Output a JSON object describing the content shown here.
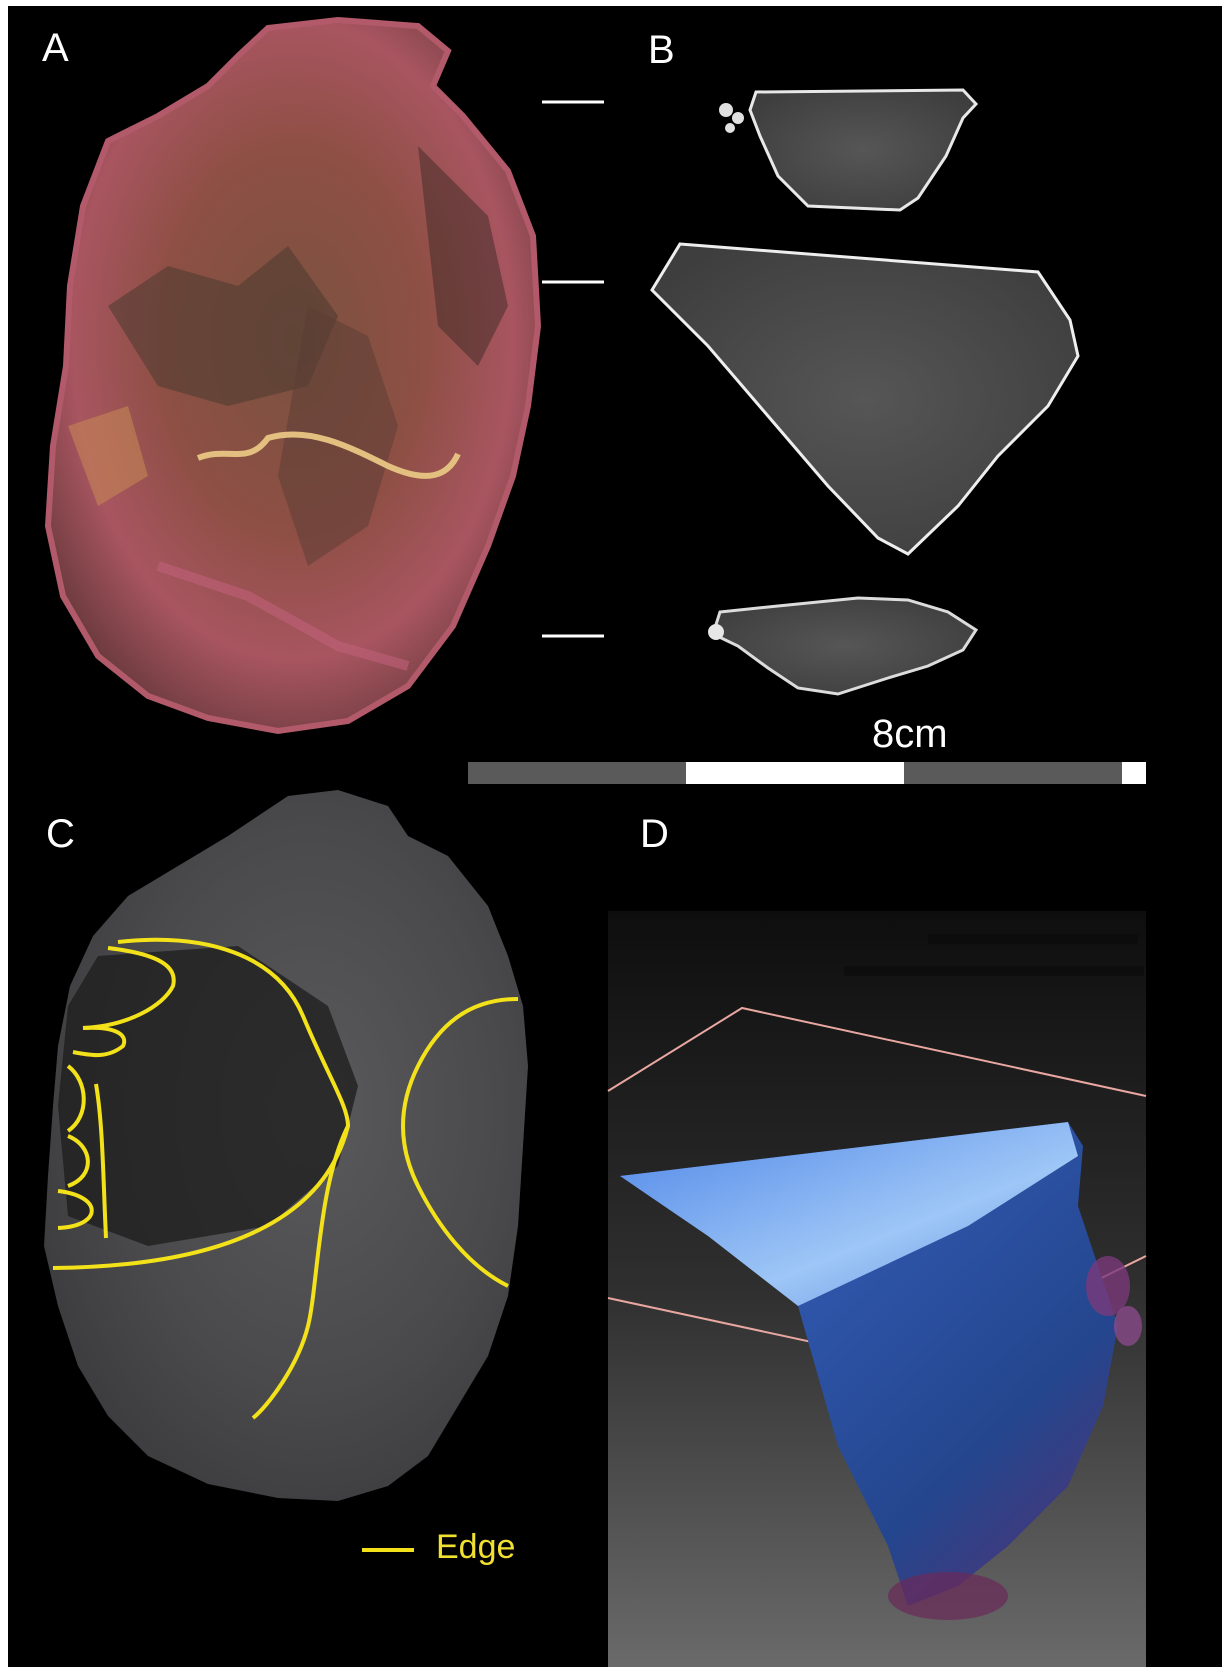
{
  "figure": {
    "panels": [
      {
        "label": "A"
      },
      {
        "label": "B"
      },
      {
        "label": "C"
      },
      {
        "label": "D"
      }
    ],
    "scale_bar": {
      "label": "8cm"
    },
    "legend": {
      "label": "Edge"
    },
    "colors": {
      "background": "#000000",
      "edge_line": "#f3e21a",
      "scale_dark": "#5a5a5a",
      "scale_light": "#ffffff",
      "render_blue": "#3d6fd8",
      "bounding_box": "#e8a7a0"
    }
  }
}
